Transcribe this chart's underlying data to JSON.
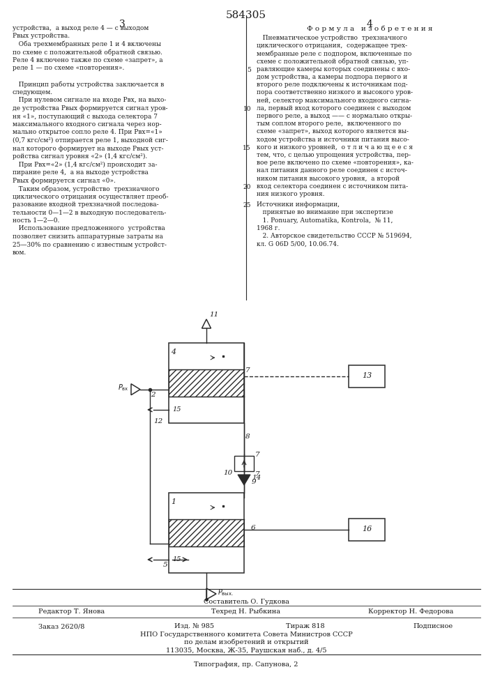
{
  "page_number_left": "3",
  "page_number_right": "4",
  "patent_number": "584305",
  "section_title": "Ф о р м у л а   и з о б р е т е н и я",
  "left_column_text": [
    "устройства,  а выход реле 4 — с выходом",
    "Pвыx устройства.",
    "   Оба трехмембранных реле 1 и 4 включены",
    "по схеме с положительной обратной связью.",
    "Реле 4 включено также по схеме «запрет», а",
    "реле 1 — по схеме «повторения».",
    "",
    "   Принцип работы устройства заключается в",
    "следующем.",
    "   При нулевом сигнале на входе Pвх, на выхо-",
    "де устройства Pвыx формируется сигнал уров-",
    "ня «1», поступающий с выхода селектора 7",
    "максимального входного сигнала через нор-",
    "мально открытое сопло реле 4. При Pвх=«1»",
    "(0,7 кгс/см²) отпирается реле 1, выходной сиг-",
    "нал которого формирует на выходе Pвыx уст-",
    "ройства сигнал уровня «2» (1,4 кгс/см²).",
    "   При Pвх=«2» (1,4 кгс/см²) происходит за-",
    "пирание реле 4,  а на выходе устройства",
    "Pвыx формируется сигнал «0».",
    "   Таким образом, устройство  трехзначного",
    "циклического отрицания осуществляет преоб-",
    "разование входной трехзначной последова-",
    "тельности 0—1—2 в выходную последователь-",
    "ность 1—2—0.",
    "   Использование предложенного  устройства",
    "позволяет снизить аппаратурные затраты на",
    "25—30% по сравнению с известным устройст-",
    "вом."
  ],
  "right_column_text": [
    "   Пневматическое устройство  трехзначного",
    "циклического отрицания,  содержащее трех-",
    "мембранные реле с подпором, включенные по",
    "схеме с положительной обратной связью, уп-",
    "равляющие камеры которых соединены с вхо-",
    "дом устройства, а камеры подпора первого и",
    "второго реле подключены к источникам под-",
    "пора соответственно низкого и высокого уров-",
    "ней, селектор максимального входного сигна-",
    "ла, первый вход которого соединен с выходом",
    "первого реле, а выход —— с нормально откры-",
    "тым соплом второго реле,  включенного по",
    "схеме «запрет», выход которого является вы-",
    "ходом устройства и источники питания высо-",
    "кого и низкого уровней,  о т л и ч а ю щ е е с я",
    "тем, что, с целью упрощения устройства, пер-",
    "вое реле включено по схеме «повторения», ка-",
    "нал питания данного реле соединен с источ-",
    "ником питания высокого уровня,  а второй",
    "вход селектора соединен с источником пита-",
    "ния низкого уровня."
  ],
  "sources_header": "Источники информации,",
  "sources_subheader": "   принятые во внимание при экспертизе",
  "source1": "   1. Ponuary, Automatika, Kontrola,  № 11,",
  "source1b": "1968 г.",
  "source2": "   2. Авторское свидетельство СССР № 519694,",
  "source2b": "кл. G 06D 5/00, 10.06.74.",
  "composer": "Составитель О. Гудкова",
  "editor": "Редактор Т. Янова",
  "techred": "Техред Н. Рыбкина",
  "corrector": "Корректор Н. Федорова",
  "order": "Заказ 2620/8",
  "edition": "Изд. № 985",
  "circulation": "Тираж 818",
  "subscription": "Подписное",
  "org_name": "НПО Государственного комитета Совета Министров СССР",
  "org_dept": "по делам изобретений и открытий",
  "org_addr": "113035, Москва, Ж-35, Раушская наб., д. 4/5",
  "printing": "Типография, пр. Сапунова, 2",
  "bg_color": "#ffffff",
  "text_color": "#1a1a1a",
  "line_color": "#2a2a2a"
}
